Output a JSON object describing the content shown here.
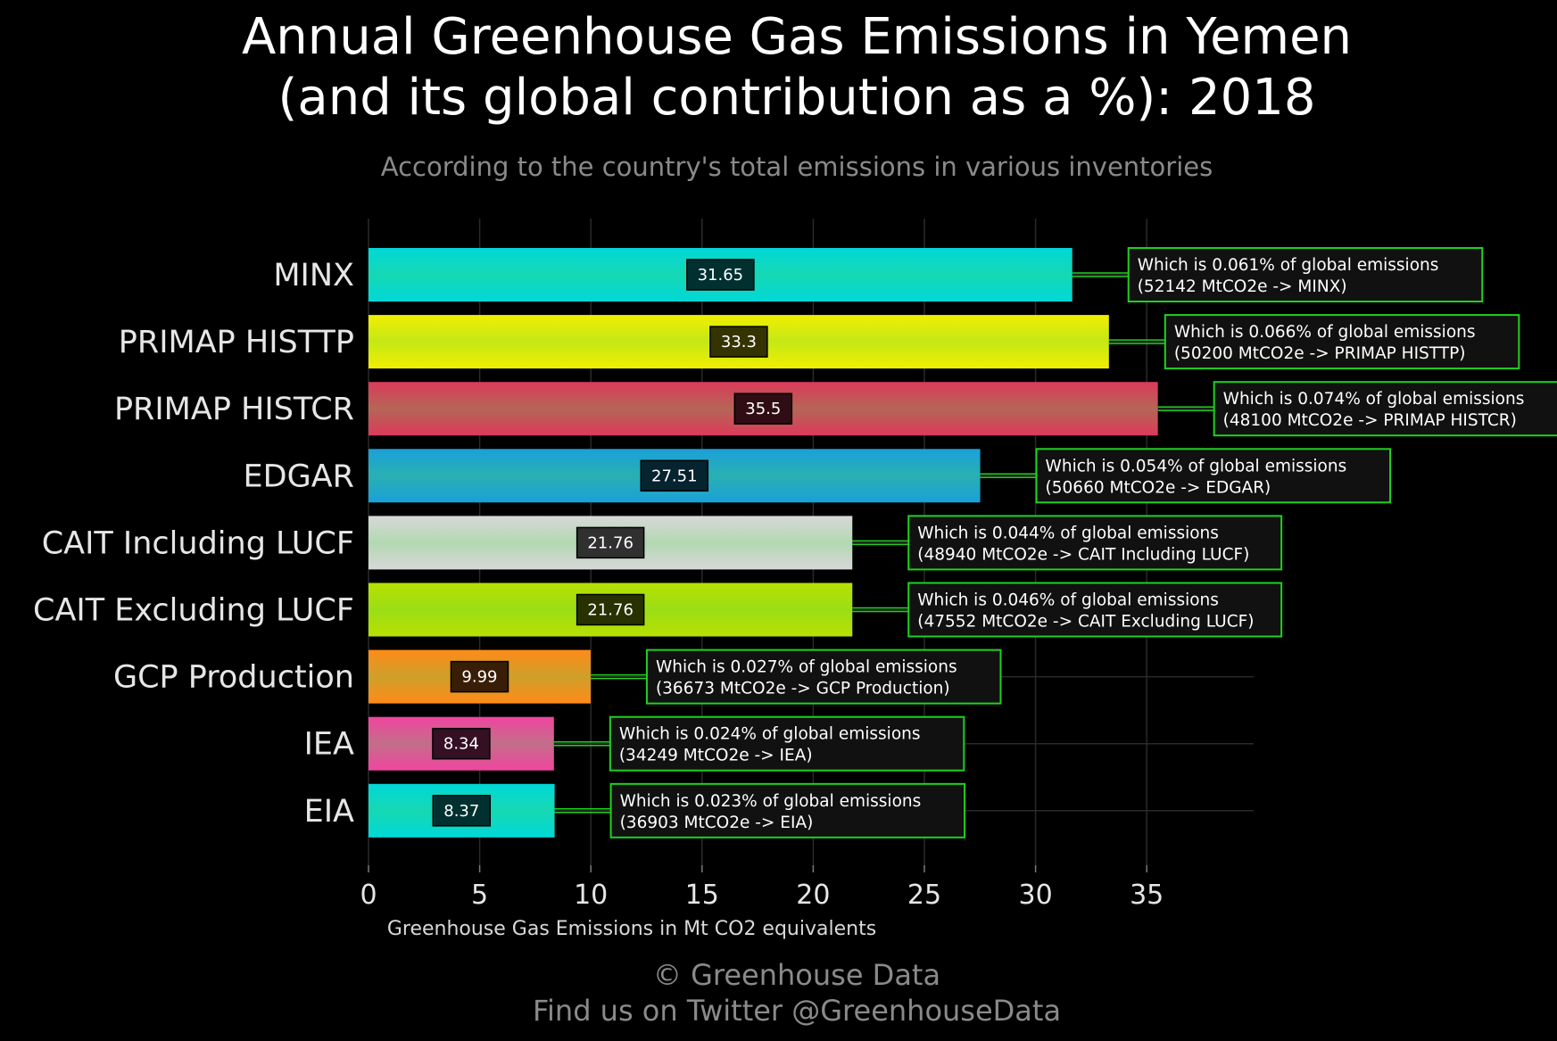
{
  "title": {
    "line1": "Annual Greenhouse Gas Emissions in Yemen",
    "line2": "(and its global contribution as a %): 2018"
  },
  "subtitle": "According to the country's total emissions in various inventories",
  "caption": {
    "line1": "© Greenhouse Data",
    "line2": "Find us on Twitter @GreenhouseData"
  },
  "chart_data": {
    "type": "bar",
    "orientation": "horizontal",
    "title": "Annual Greenhouse Gas Emissions in Yemen (and its global contribution as a %): 2018",
    "subtitle": "According to the country's total emissions in various inventories",
    "xlabel": "Greenhouse Gas Emissions in Mt CO2 equivalents",
    "ylabel": "",
    "xlim": [
      0,
      40
    ],
    "xticks": [
      0,
      5,
      10,
      15,
      20,
      25,
      30,
      35
    ],
    "grid": true,
    "legend": "none",
    "categories": [
      "MINX",
      "PRIMAP HISTTP",
      "PRIMAP HISTCR",
      "EDGAR",
      "CAIT Including LUCF",
      "CAIT Excluding LUCF",
      "GCP Production",
      "IEA",
      "EIA"
    ],
    "values": [
      31.65,
      33.3,
      35.5,
      27.51,
      21.76,
      21.76,
      9.99,
      8.34,
      8.37
    ],
    "value_labels": [
      "31.65",
      "33.3",
      "35.5",
      "27.51",
      "21.76",
      "21.76",
      "9.99",
      "8.34",
      "8.37"
    ],
    "colors": [
      "#00d8d8",
      "#f2ee00",
      "#dc3a5a",
      "#1aa0d8",
      "#d8d8d8",
      "#b8e000",
      "#ff8a1a",
      "#f045a0",
      "#00d8d8"
    ],
    "annotations": [
      {
        "line1": "Which is 0.061% of global emissions",
        "line2": "(52142 MtCO2e -> MINX)"
      },
      {
        "line1": "Which is 0.066% of global emissions",
        "line2": "(50200 MtCO2e -> PRIMAP HISTTP)"
      },
      {
        "line1": "Which is 0.074% of global emissions",
        "line2": "(48100 MtCO2e -> PRIMAP HISTCR)"
      },
      {
        "line1": "Which is 0.054% of global emissions",
        "line2": "(50660 MtCO2e -> EDGAR)"
      },
      {
        "line1": "Which is 0.044% of global emissions",
        "line2": "(48940 MtCO2e -> CAIT Including LUCF)"
      },
      {
        "line1": "Which is 0.046% of global emissions",
        "line2": "(47552 MtCO2e -> CAIT Excluding LUCF)"
      },
      {
        "line1": "Which is 0.027% of global emissions",
        "line2": "(36673 MtCO2e -> GCP Production)"
      },
      {
        "line1": "Which is 0.024% of global emissions",
        "line2": "(34249 MtCO2e -> IEA)"
      },
      {
        "line1": "Which is 0.023% of global emissions",
        "line2": "(36903 MtCO2e -> EIA)"
      }
    ],
    "colors_meta": {
      "background": "#000000",
      "grid": "#2a2a2a",
      "annotation_border": "#1fd11f",
      "annotation_fill": "#111111",
      "connector": "#1fd11f"
    }
  }
}
